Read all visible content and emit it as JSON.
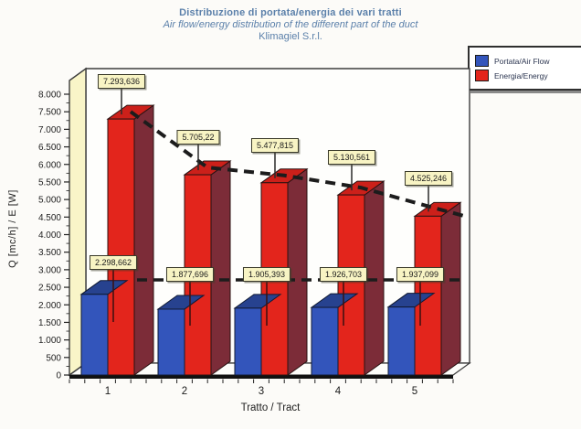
{
  "title": {
    "line1": "Distribuzione di portata/energia dei vari tratti",
    "line2": "Air flow/energy distribution of the different part of the duct",
    "line3": "Klimagiel S.r.l."
  },
  "legend": {
    "position": "top-right",
    "items": [
      {
        "label": "Portata/Air Flow",
        "color": "#3355bb"
      },
      {
        "label": "Energia/Energy",
        "color": "#e3251c"
      }
    ]
  },
  "axes": {
    "y_title": "Q [mc/h] / E [W]",
    "x_title": "Tratto / Tract"
  },
  "chart_data": {
    "type": "bar",
    "projection": "3d",
    "title": "Distribuzione di portata/energia dei vari tratti",
    "subtitle": "Air flow/energy distribution of the different part of the duct",
    "source": "Klimagiel S.r.l.",
    "xlabel": "Tratto / Tract",
    "ylabel": "Q [mc/h] / E [W]",
    "categories": [
      "1",
      "2",
      "3",
      "4",
      "5"
    ],
    "series": [
      {
        "name": "Portata/Air Flow",
        "values": [
          2298.662,
          1877.696,
          1905.393,
          1926.703,
          1937.099
        ],
        "value_labels": [
          "2.298,662",
          "1.877,696",
          "1.905,393",
          "1.926,703",
          "1.937,099"
        ],
        "color_front": "#3355bb",
        "color_top": "#27428f",
        "color_side": "#1d2f66"
      },
      {
        "name": "Energia/Energy",
        "values": [
          7293.636,
          5705.22,
          5477.815,
          5130.561,
          4525.246
        ],
        "value_labels": [
          "7.293,636",
          "5.705,22",
          "5.477,815",
          "5.130,561",
          "4.525,246"
        ],
        "color_front": "#e3251c",
        "color_top": "#cc201a",
        "color_side": "#7c2c38"
      }
    ],
    "ylim": [
      0,
      8000
    ],
    "ytick_step": 500,
    "yticks": [
      "0",
      "500",
      "1.000",
      "1.500",
      "2.000",
      "2.500",
      "3.000",
      "3.500",
      "4.000",
      "4.500",
      "5.000",
      "5.500",
      "6.000",
      "6.500",
      "7.000",
      "7.500",
      "8.000"
    ],
    "grid": false,
    "legend_position": "top-right",
    "annotations": {
      "trend_line_energia": "dashed line through tops of red bars, descending left to right",
      "trend_line_portata": "flat dashed line near value 2.750 spanning the plot width"
    },
    "wall_color": "#f9f5c8",
    "dash_color": "#1c1c1c",
    "label_box_color": "#f8f4c4"
  }
}
